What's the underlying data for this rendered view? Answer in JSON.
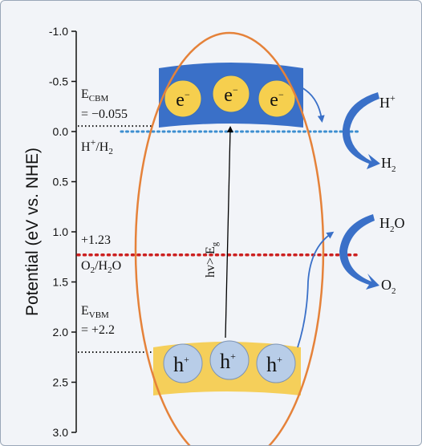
{
  "colors": {
    "background": "#f2f4f8",
    "cb_band": "#3a70c8",
    "vb_band": "#f5cf5a",
    "electron_circle": "#f6cf4e",
    "hole_circle": "#b8cde8",
    "ellipse": "#e5823a",
    "redox_h2_line": "#3c8ed0",
    "redox_o2_line": "#cc2020",
    "arrow_blue": "#3a70c8"
  },
  "axis": {
    "label": "Potential (eV vs. NHE)",
    "ticks": [
      "-1.0",
      "-0.5",
      "0.0",
      "0.5",
      "1.0",
      "1.5",
      "2.0",
      "2.5",
      "3.0"
    ],
    "range": [
      -1.0,
      3.0
    ],
    "inverted": true
  },
  "levels": {
    "cbm": {
      "name_main": "E",
      "name_sub": "CBM",
      "value_text": "= −0.055",
      "value": -0.055
    },
    "h2": {
      "label_main": "H",
      "label_sup": "+",
      "label_rest": "/H",
      "label_sub": "2",
      "value": 0.0
    },
    "o2": {
      "value_text": "+1.23",
      "label_main": "O",
      "label_sub": "2",
      "label_rest": "/H",
      "label_sub2": "2",
      "label_end": "O",
      "value": 1.23
    },
    "vbm": {
      "name_main": "E",
      "name_sub": "VBM",
      "value_text": "= +2.2",
      "value": 2.2
    }
  },
  "carriers": {
    "electron_main": "e",
    "electron_sup": "−",
    "hole_main": "h",
    "hole_sup": "+"
  },
  "excitation": {
    "main": "hv> E",
    "sub": "g"
  },
  "products": {
    "h_plus_main": "H",
    "h_plus_sup": "+",
    "h2_main": "H",
    "h2_sub": "2",
    "h2o_main": "H",
    "h2o_sub": "2",
    "h2o_end": "O",
    "o2_main": "O",
    "o2_sub": "2"
  }
}
